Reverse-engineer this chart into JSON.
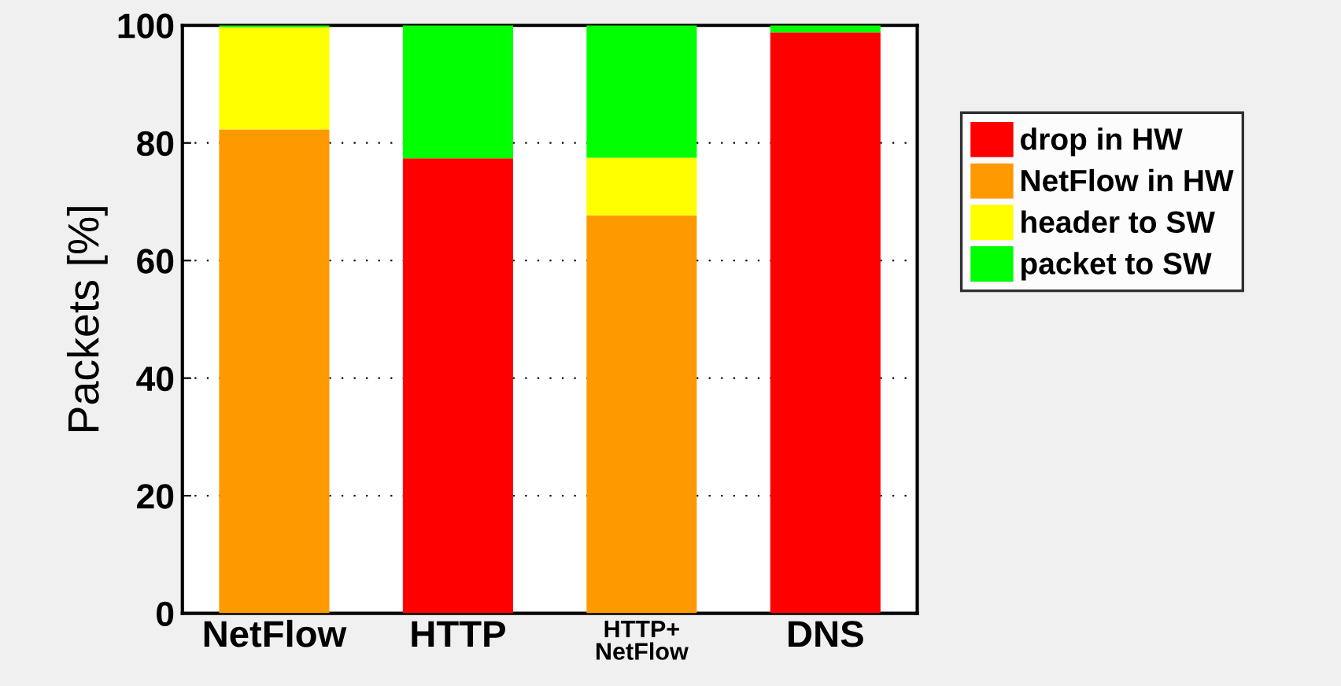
{
  "chart_data": {
    "type": "bar",
    "stacked": true,
    "ylabel": "Packets [%]",
    "categories": [
      "NetFlow",
      "HTTP",
      "HTTP+\nNetFlow",
      "DNS"
    ],
    "series": [
      {
        "name": "drop in HW",
        "color": "#ff0000",
        "values": [
          0,
          77.4,
          0,
          98.8
        ]
      },
      {
        "name": "NetFlow in HW",
        "color": "#ff9900",
        "values": [
          82.3,
          0,
          67.7,
          0
        ]
      },
      {
        "name": "header to SW",
        "color": "#ffff00",
        "values": [
          17.4,
          0,
          9.8,
          0
        ]
      },
      {
        "name": "packet to SW",
        "color": "#00ff00",
        "values": [
          0.3,
          22.6,
          22.5,
          1.2
        ]
      }
    ],
    "ylim": [
      0,
      100
    ],
    "yticks": [
      0,
      20,
      40,
      60,
      80,
      100
    ],
    "grid": "y",
    "legend": "right"
  }
}
